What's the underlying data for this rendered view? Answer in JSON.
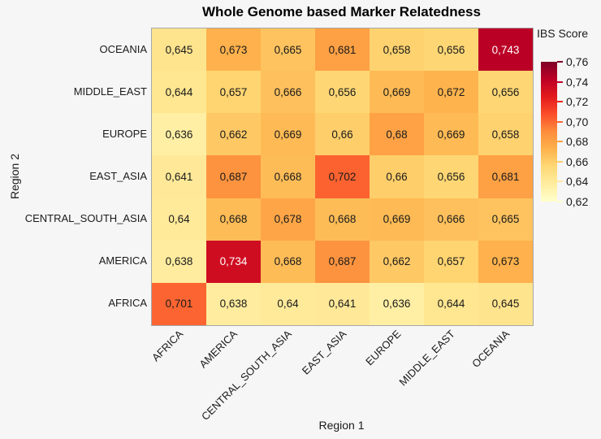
{
  "title": "Whole Genome based Marker Relatedness",
  "axes": {
    "xlabel": "Region 1",
    "ylabel": "Region 2"
  },
  "legend": {
    "title": "IBS Score"
  },
  "chart_data": {
    "type": "heatmap",
    "title": "Whole Genome based Marker Relatedness",
    "xlabel": "Region 1",
    "ylabel": "Region 2",
    "x_categories": [
      "AFRICA",
      "AMERICA",
      "CENTRAL_SOUTH_ASIA",
      "EAST_ASIA",
      "EUROPE",
      "MIDDLE_EAST",
      "OCEANIA"
    ],
    "y_categories_top_to_bottom": [
      "OCEANIA",
      "MIDDLE_EAST",
      "EUROPE",
      "EAST_ASIA",
      "CENTRAL_SOUTH_ASIA",
      "AMERICA",
      "AFRICA"
    ],
    "values": [
      [
        0.645,
        0.673,
        0.665,
        0.681,
        0.658,
        0.656,
        0.743
      ],
      [
        0.644,
        0.657,
        0.666,
        0.656,
        0.669,
        0.672,
        0.656
      ],
      [
        0.636,
        0.662,
        0.669,
        0.66,
        0.68,
        0.669,
        0.658
      ],
      [
        0.641,
        0.687,
        0.668,
        0.702,
        0.66,
        0.656,
        0.681
      ],
      [
        0.64,
        0.668,
        0.678,
        0.668,
        0.669,
        0.666,
        0.665
      ],
      [
        0.638,
        0.734,
        0.668,
        0.687,
        0.662,
        0.657,
        0.673
      ],
      [
        0.701,
        0.638,
        0.64,
        0.641,
        0.636,
        0.644,
        0.645
      ]
    ],
    "value_labels": [
      [
        "0,645",
        "0,673",
        "0,665",
        "0,681",
        "0,658",
        "0,656",
        "0,743"
      ],
      [
        "0,644",
        "0,657",
        "0,666",
        "0,656",
        "0,669",
        "0,672",
        "0,656"
      ],
      [
        "0,636",
        "0,662",
        "0,669",
        "0,66",
        "0,68",
        "0,669",
        "0,658"
      ],
      [
        "0,641",
        "0,687",
        "0,668",
        "0,702",
        "0,66",
        "0,656",
        "0,681"
      ],
      [
        "0,64",
        "0,668",
        "0,678",
        "0,668",
        "0,669",
        "0,666",
        "0,665"
      ],
      [
        "0,638",
        "0,734",
        "0,668",
        "0,687",
        "0,662",
        "0,657",
        "0,673"
      ],
      [
        "0,701",
        "0,638",
        "0,64",
        "0,641",
        "0,636",
        "0,644",
        "0,645"
      ]
    ],
    "colorbar": {
      "label": "IBS Score",
      "min": 0.62,
      "max": 0.76,
      "tick_labels": [
        "0,76",
        "0,74",
        "0,72",
        "0,70",
        "0,68",
        "0,66",
        "0,64",
        "0,62"
      ],
      "tick_values": [
        0.76,
        0.74,
        0.72,
        0.7,
        0.68,
        0.66,
        0.64,
        0.62
      ],
      "position": "right"
    },
    "colormap": {
      "name": "YlOrRd",
      "stops": [
        "#FFFFCC",
        "#FFEDA0",
        "#FED976",
        "#FEB24C",
        "#FD8D3C",
        "#FC4E2A",
        "#E31A1C",
        "#BD0026",
        "#800026"
      ]
    },
    "grid": "off",
    "background": "#f6f6f6",
    "white_text_threshold": 0.72
  }
}
